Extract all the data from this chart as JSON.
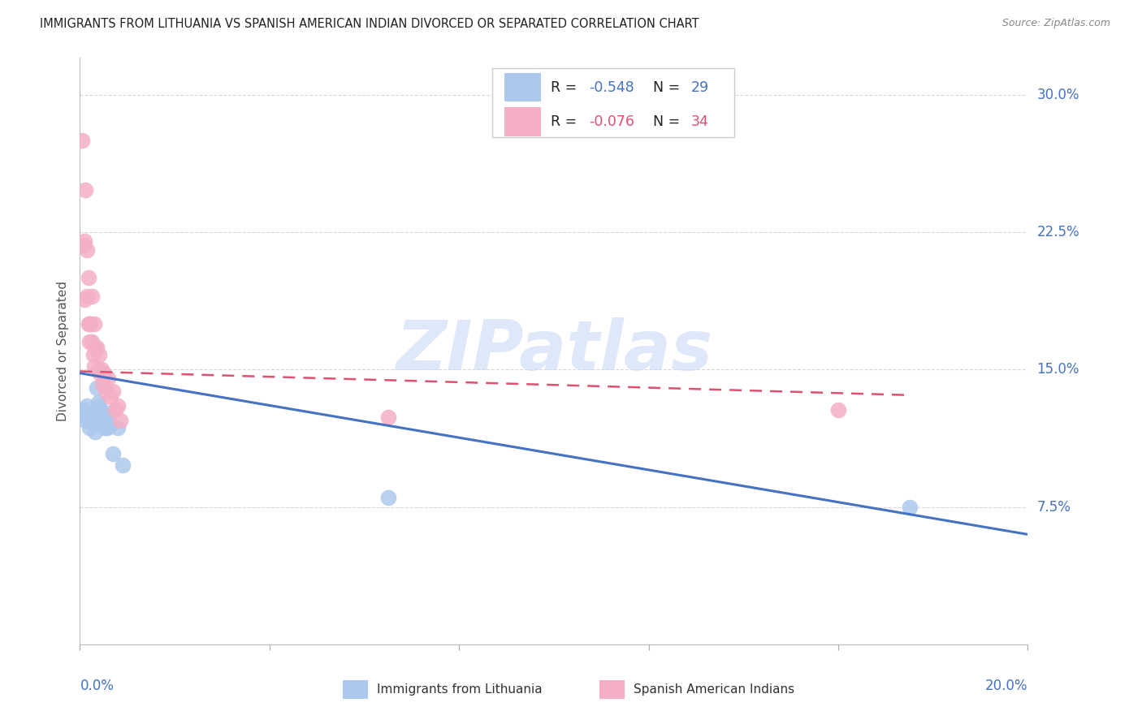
{
  "title": "IMMIGRANTS FROM LITHUANIA VS SPANISH AMERICAN INDIAN DIVORCED OR SEPARATED CORRELATION CHART",
  "source": "Source: ZipAtlas.com",
  "ylabel": "Divorced or Separated",
  "xlim": [
    0.0,
    0.2
  ],
  "ylim": [
    0.0,
    0.32
  ],
  "ytick_values": [
    0.0,
    0.075,
    0.15,
    0.225,
    0.3
  ],
  "ytick_labels": [
    "",
    "7.5%",
    "15.0%",
    "22.5%",
    "30.0%"
  ],
  "xtick_values": [
    0.0,
    0.04,
    0.08,
    0.12,
    0.16,
    0.2
  ],
  "legend_blue_R_label": "R = ",
  "legend_blue_R_val": "-0.548",
  "legend_blue_N_label": "N = ",
  "legend_blue_N_val": "29",
  "legend_pink_R_label": "R = ",
  "legend_pink_R_val": "-0.076",
  "legend_pink_N_label": "N = ",
  "legend_pink_N_val": "34",
  "legend_label_blue": "Immigrants from Lithuania",
  "legend_label_pink": "Spanish American Indians",
  "blue_color": "#adc8ed",
  "pink_color": "#f4afc5",
  "trendline_blue_color": "#4472c4",
  "trendline_pink_color": "#e05070",
  "blue_points_x": [
    0.0008,
    0.001,
    0.0012,
    0.0015,
    0.0018,
    0.002,
    0.002,
    0.0022,
    0.0025,
    0.0028,
    0.003,
    0.0032,
    0.0035,
    0.0038,
    0.004,
    0.0042,
    0.0045,
    0.0048,
    0.005,
    0.0052,
    0.0055,
    0.0058,
    0.006,
    0.0065,
    0.007,
    0.008,
    0.009,
    0.065,
    0.175
  ],
  "blue_points_y": [
    0.128,
    0.125,
    0.122,
    0.13,
    0.126,
    0.124,
    0.118,
    0.122,
    0.126,
    0.124,
    0.12,
    0.116,
    0.14,
    0.132,
    0.13,
    0.126,
    0.126,
    0.122,
    0.122,
    0.118,
    0.122,
    0.118,
    0.126,
    0.12,
    0.104,
    0.118,
    0.098,
    0.08,
    0.075
  ],
  "pink_points_x": [
    0.0005,
    0.0008,
    0.001,
    0.001,
    0.0012,
    0.0015,
    0.0015,
    0.0018,
    0.0018,
    0.002,
    0.002,
    0.0022,
    0.0025,
    0.0025,
    0.0028,
    0.003,
    0.003,
    0.0032,
    0.0035,
    0.0038,
    0.004,
    0.0042,
    0.0045,
    0.0048,
    0.005,
    0.0055,
    0.006,
    0.0065,
    0.007,
    0.0075,
    0.008,
    0.0085,
    0.065,
    0.16
  ],
  "pink_points_y": [
    0.275,
    0.218,
    0.22,
    0.188,
    0.248,
    0.215,
    0.19,
    0.2,
    0.175,
    0.175,
    0.165,
    0.175,
    0.19,
    0.165,
    0.158,
    0.175,
    0.152,
    0.162,
    0.162,
    0.15,
    0.158,
    0.148,
    0.15,
    0.142,
    0.148,
    0.138,
    0.145,
    0.135,
    0.138,
    0.128,
    0.13,
    0.122,
    0.124,
    0.128
  ],
  "blue_trendline_x": [
    0.0,
    0.2
  ],
  "blue_trendline_y": [
    0.148,
    0.06
  ],
  "pink_trendline_x": [
    0.0,
    0.175
  ],
  "pink_trendline_y": [
    0.149,
    0.136
  ],
  "pink_trendline_dash": true,
  "watermark_text": "ZIPatlas",
  "watermark_color": "#c8daf5",
  "watermark_alpha": 0.6,
  "background_color": "#ffffff",
  "grid_color": "#d8d8d8",
  "right_label_color": "#4472c4",
  "text_dark": "#333333",
  "text_gray": "#888888"
}
